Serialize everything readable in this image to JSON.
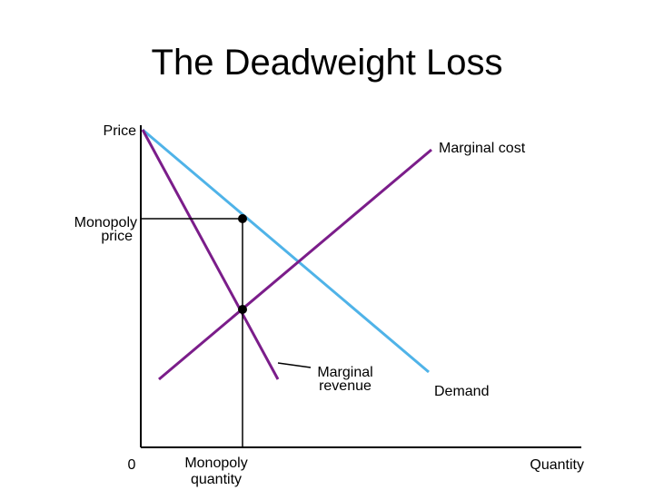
{
  "title": "The Deadweight Loss",
  "labels": {
    "price": "Price",
    "marginal_cost": "Marginal cost",
    "monopoly_price": [
      "Monopoly",
      "price"
    ],
    "marginal_revenue": [
      "Marginal",
      "revenue"
    ],
    "demand": "Demand",
    "origin": "0",
    "monopoly_quantity": [
      "Monopoly",
      "quantity"
    ],
    "quantity": "Quantity"
  }
}
